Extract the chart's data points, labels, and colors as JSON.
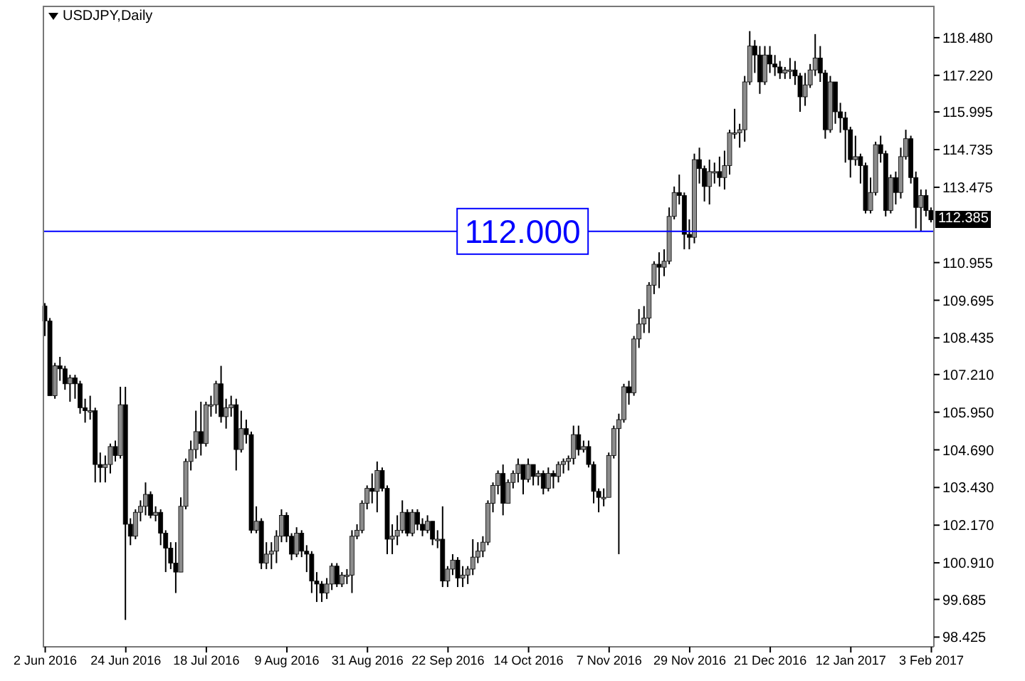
{
  "chart_data": {
    "type": "candlestick",
    "title": "USDJPY,Daily",
    "categories": [
      "2 Jun 2016",
      null,
      null,
      null,
      null,
      null,
      null,
      null,
      null,
      null,
      null,
      null,
      null,
      null,
      null,
      null,
      "24 Jun 2016",
      null,
      null,
      null,
      null,
      null,
      null,
      null,
      null,
      null,
      null,
      null,
      null,
      null,
      null,
      null,
      "18 Jul 2016",
      null,
      null,
      null,
      null,
      null,
      null,
      null,
      null,
      null,
      null,
      null,
      null,
      null,
      null,
      null,
      "9 Aug 2016",
      null,
      null,
      null,
      null,
      null,
      null,
      null,
      null,
      null,
      null,
      null,
      null,
      null,
      null,
      null,
      "31 Aug 2016",
      null,
      null,
      null,
      null,
      null,
      null,
      null,
      null,
      null,
      null,
      null,
      null,
      null,
      null,
      null,
      "22 Sep 2016",
      null,
      null,
      null,
      null,
      null,
      null,
      null,
      null,
      null,
      null,
      null,
      null,
      null,
      null,
      null,
      "14 Oct 2016",
      null,
      null,
      null,
      null,
      null,
      null,
      null,
      null,
      null,
      null,
      null,
      null,
      null,
      null,
      null,
      "7 Nov 2016",
      null,
      null,
      null,
      null,
      null,
      null,
      null,
      null,
      null,
      null,
      null,
      null,
      null,
      null,
      null,
      "29 Nov 2016",
      null,
      null,
      null,
      null,
      null,
      null,
      null,
      null,
      null,
      null,
      null,
      null,
      null,
      null,
      null,
      "21 Dec 2016",
      null,
      null,
      null,
      null,
      null,
      null,
      null,
      null,
      null,
      null,
      null,
      null,
      null,
      null,
      null,
      "12 Jan 2017",
      null,
      null,
      null,
      null,
      null,
      null,
      null,
      null,
      null,
      null,
      null,
      null,
      null,
      null,
      null,
      "3 Feb 2017"
    ],
    "ohlc": [
      [
        109.5,
        109.6,
        108.5,
        109.0
      ],
      [
        109.0,
        109.1,
        106.5,
        106.5
      ],
      [
        106.5,
        107.6,
        106.4,
        107.5
      ],
      [
        107.5,
        107.8,
        107.0,
        107.4
      ],
      [
        107.4,
        107.5,
        106.7,
        106.9
      ],
      [
        106.9,
        107.2,
        106.3,
        107.1
      ],
      [
        107.1,
        107.2,
        106.4,
        106.9
      ],
      [
        106.9,
        107.0,
        105.9,
        106.1
      ],
      [
        106.1,
        106.4,
        105.6,
        106.0
      ],
      [
        106.0,
        106.5,
        105.7,
        106.0
      ],
      [
        106.0,
        106.1,
        103.6,
        104.2
      ],
      [
        104.2,
        104.6,
        103.6,
        104.1
      ],
      [
        104.1,
        104.5,
        103.6,
        104.2
      ],
      [
        104.2,
        104.9,
        103.9,
        104.8
      ],
      [
        104.8,
        105.0,
        104.3,
        104.5
      ],
      [
        104.5,
        106.8,
        104.4,
        106.2
      ],
      [
        106.2,
        106.8,
        99.0,
        102.2
      ],
      [
        102.2,
        102.4,
        101.5,
        101.8
      ],
      [
        101.8,
        102.7,
        101.7,
        102.6
      ],
      [
        102.6,
        103.0,
        102.3,
        102.8
      ],
      [
        102.8,
        103.6,
        102.5,
        103.2
      ],
      [
        103.2,
        103.3,
        102.4,
        102.5
      ],
      [
        102.5,
        102.8,
        102.3,
        102.6
      ],
      [
        102.6,
        102.7,
        101.5,
        101.9
      ],
      [
        101.9,
        102.0,
        100.6,
        101.4
      ],
      [
        101.4,
        101.6,
        100.7,
        100.9
      ],
      [
        100.9,
        101.6,
        99.9,
        100.6
      ],
      [
        100.6,
        103.1,
        100.6,
        102.8
      ],
      [
        102.8,
        104.4,
        102.7,
        104.3
      ],
      [
        104.3,
        105.0,
        104.0,
        104.7
      ],
      [
        104.7,
        106.0,
        104.4,
        105.3
      ],
      [
        105.3,
        106.3,
        104.5,
        104.9
      ],
      [
        104.9,
        106.3,
        104.8,
        106.2
      ],
      [
        106.2,
        106.5,
        105.8,
        106.2
      ],
      [
        106.2,
        107.0,
        105.9,
        106.9
      ],
      [
        106.9,
        107.5,
        105.6,
        105.8
      ],
      [
        105.8,
        106.4,
        105.4,
        106.1
      ],
      [
        106.1,
        106.5,
        105.8,
        106.2
      ],
      [
        106.2,
        106.4,
        104.0,
        104.7
      ],
      [
        104.7,
        106.0,
        104.6,
        105.4
      ],
      [
        105.4,
        105.7,
        104.9,
        105.2
      ],
      [
        105.2,
        105.3,
        101.9,
        102.0
      ],
      [
        102.0,
        102.8,
        101.9,
        102.3
      ],
      [
        102.3,
        102.4,
        100.7,
        100.9
      ],
      [
        100.9,
        101.6,
        100.7,
        101.2
      ],
      [
        101.2,
        101.6,
        100.7,
        101.3
      ],
      [
        101.3,
        102.0,
        100.9,
        101.8
      ],
      [
        101.8,
        102.7,
        101.6,
        102.5
      ],
      [
        102.5,
        102.6,
        101.6,
        101.8
      ],
      [
        101.8,
        101.9,
        101.0,
        101.2
      ],
      [
        101.2,
        102.1,
        101.1,
        101.9
      ],
      [
        101.9,
        102.0,
        101.1,
        101.3
      ],
      [
        101.3,
        101.5,
        100.6,
        101.2
      ],
      [
        101.2,
        101.3,
        99.9,
        100.3
      ],
      [
        100.3,
        100.6,
        99.6,
        100.2
      ],
      [
        100.2,
        100.3,
        99.6,
        99.9
      ],
      [
        99.9,
        100.4,
        99.7,
        100.2
      ],
      [
        100.2,
        100.9,
        100.0,
        100.8
      ],
      [
        100.8,
        100.9,
        100.1,
        100.2
      ],
      [
        100.2,
        100.6,
        100.1,
        100.5
      ],
      [
        100.5,
        100.7,
        100.2,
        100.5
      ],
      [
        100.5,
        102.0,
        99.9,
        101.8
      ],
      [
        101.8,
        102.2,
        101.7,
        102.0
      ],
      [
        102.0,
        103.0,
        101.9,
        102.9
      ],
      [
        102.9,
        103.5,
        102.7,
        103.4
      ],
      [
        103.4,
        103.9,
        102.9,
        103.3
      ],
      [
        103.3,
        104.3,
        102.6,
        104.0
      ],
      [
        104.0,
        104.1,
        103.3,
        103.4
      ],
      [
        103.4,
        103.5,
        101.2,
        101.7
      ],
      [
        101.7,
        102.2,
        101.2,
        101.8
      ],
      [
        101.8,
        102.5,
        101.5,
        102.0
      ],
      [
        102.0,
        103.0,
        101.9,
        102.6
      ],
      [
        102.6,
        102.7,
        101.8,
        101.9
      ],
      [
        101.9,
        102.7,
        101.8,
        102.6
      ],
      [
        102.6,
        102.7,
        102.0,
        102.2
      ],
      [
        102.2,
        102.4,
        101.8,
        102.0
      ],
      [
        102.0,
        102.5,
        101.9,
        102.3
      ],
      [
        102.3,
        102.3,
        101.5,
        101.7
      ],
      [
        101.7,
        102.0,
        101.4,
        101.7
      ],
      [
        101.7,
        102.8,
        100.1,
        100.3
      ],
      [
        100.3,
        100.8,
        100.1,
        100.7
      ],
      [
        100.7,
        101.2,
        100.5,
        101.0
      ],
      [
        101.0,
        101.1,
        100.1,
        100.4
      ],
      [
        100.4,
        100.8,
        100.1,
        100.5
      ],
      [
        100.5,
        100.8,
        100.2,
        100.7
      ],
      [
        100.7,
        101.7,
        100.5,
        101.1
      ],
      [
        101.1,
        101.6,
        100.9,
        101.3
      ],
      [
        101.3,
        101.8,
        101.1,
        101.6
      ],
      [
        101.6,
        103.0,
        101.5,
        102.9
      ],
      [
        102.9,
        103.6,
        102.6,
        103.5
      ],
      [
        103.5,
        104.0,
        103.2,
        103.9
      ],
      [
        103.9,
        104.2,
        102.5,
        102.9
      ],
      [
        102.9,
        103.7,
        102.9,
        103.6
      ],
      [
        103.6,
        104.0,
        103.4,
        103.9
      ],
      [
        103.9,
        104.4,
        103.6,
        104.2
      ],
      [
        104.2,
        104.2,
        103.2,
        103.7
      ],
      [
        103.7,
        104.4,
        103.6,
        104.2
      ],
      [
        104.2,
        104.2,
        103.5,
        103.8
      ],
      [
        103.8,
        104.0,
        103.5,
        103.9
      ],
      [
        103.9,
        104.0,
        103.2,
        103.4
      ],
      [
        103.4,
        104.1,
        103.3,
        103.9
      ],
      [
        103.9,
        104.0,
        103.4,
        103.8
      ],
      [
        103.8,
        104.3,
        103.6,
        104.2
      ],
      [
        104.2,
        104.4,
        103.9,
        104.3
      ],
      [
        104.3,
        104.5,
        104.0,
        104.4
      ],
      [
        104.4,
        105.5,
        104.2,
        105.2
      ],
      [
        105.2,
        105.5,
        104.5,
        104.7
      ],
      [
        104.7,
        105.0,
        104.6,
        104.8
      ],
      [
        104.8,
        105.0,
        104.1,
        104.2
      ],
      [
        104.2,
        104.3,
        102.9,
        103.3
      ],
      [
        103.3,
        103.4,
        102.6,
        103.1
      ],
      [
        103.1,
        103.4,
        102.8,
        103.1
      ],
      [
        103.1,
        104.6,
        103.1,
        104.5
      ],
      [
        104.5,
        105.5,
        104.4,
        105.4
      ],
      [
        105.4,
        105.9,
        101.2,
        105.7
      ],
      [
        105.7,
        106.9,
        105.6,
        106.8
      ],
      [
        106.8,
        107.0,
        106.2,
        106.6
      ],
      [
        106.6,
        108.5,
        106.5,
        108.4
      ],
      [
        108.4,
        109.4,
        108.1,
        108.9
      ],
      [
        108.9,
        109.5,
        108.6,
        109.1
      ],
      [
        109.1,
        110.3,
        108.6,
        110.2
      ],
      [
        110.2,
        111.0,
        109.9,
        110.9
      ],
      [
        110.9,
        111.3,
        110.1,
        110.8
      ],
      [
        110.8,
        111.4,
        110.5,
        111.0
      ],
      [
        111.0,
        112.8,
        110.9,
        112.5
      ],
      [
        112.5,
        113.5,
        112.4,
        113.3
      ],
      [
        113.3,
        113.9,
        112.9,
        113.2
      ],
      [
        113.2,
        113.3,
        111.4,
        111.9
      ],
      [
        111.9,
        112.4,
        111.4,
        111.8
      ],
      [
        111.8,
        114.6,
        111.6,
        114.4
      ],
      [
        114.4,
        114.8,
        113.6,
        114.1
      ],
      [
        114.1,
        114.2,
        113.0,
        113.5
      ],
      [
        113.5,
        114.4,
        112.9,
        114.0
      ],
      [
        114.0,
        114.3,
        113.6,
        114.0
      ],
      [
        114.0,
        114.5,
        113.5,
        113.8
      ],
      [
        113.8,
        114.7,
        113.4,
        114.2
      ],
      [
        114.2,
        115.4,
        113.9,
        115.3
      ],
      [
        115.3,
        116.1,
        115.1,
        115.3
      ],
      [
        115.3,
        115.6,
        114.8,
        115.4
      ],
      [
        115.4,
        117.2,
        115.0,
        117.0
      ],
      [
        117.0,
        118.7,
        116.9,
        118.2
      ],
      [
        118.2,
        118.4,
        117.3,
        117.9
      ],
      [
        117.9,
        118.2,
        116.6,
        117.0
      ],
      [
        117.0,
        118.2,
        116.9,
        117.9
      ],
      [
        117.9,
        118.2,
        117.3,
        117.6
      ],
      [
        117.6,
        117.9,
        117.2,
        117.5
      ],
      [
        117.5,
        117.7,
        117.1,
        117.3
      ],
      [
        117.3,
        117.5,
        117.1,
        117.4
      ],
      [
        117.4,
        117.8,
        117.1,
        117.4
      ],
      [
        117.4,
        117.7,
        116.9,
        117.2
      ],
      [
        117.2,
        117.3,
        116.0,
        116.5
      ],
      [
        116.5,
        117.3,
        116.2,
        116.9
      ],
      [
        116.9,
        117.6,
        116.8,
        117.4
      ],
      [
        117.4,
        118.6,
        117.2,
        117.8
      ],
      [
        117.8,
        118.2,
        117.0,
        117.3
      ],
      [
        117.3,
        117.4,
        115.1,
        115.4
      ],
      [
        115.4,
        117.2,
        115.3,
        117.0
      ],
      [
        117.0,
        117.0,
        115.6,
        116.0
      ],
      [
        116.0,
        116.3,
        115.3,
        115.8
      ],
      [
        115.8,
        116.0,
        114.3,
        115.4
      ],
      [
        115.4,
        115.5,
        113.8,
        114.4
      ],
      [
        114.4,
        115.2,
        114.2,
        114.5
      ],
      [
        114.5,
        114.6,
        113.6,
        114.2
      ],
      [
        114.2,
        114.3,
        112.6,
        112.7
      ],
      [
        112.7,
        113.8,
        112.6,
        113.3
      ],
      [
        113.3,
        115.0,
        113.2,
        114.9
      ],
      [
        114.9,
        115.2,
        114.3,
        114.6
      ],
      [
        114.6,
        114.7,
        112.5,
        112.7
      ],
      [
        112.7,
        113.9,
        112.6,
        113.8
      ],
      [
        113.8,
        114.0,
        112.9,
        113.3
      ],
      [
        113.3,
        114.8,
        113.1,
        114.5
      ],
      [
        114.5,
        115.4,
        114.4,
        115.1
      ],
      [
        115.1,
        115.2,
        113.6,
        113.8
      ],
      [
        113.8,
        114.0,
        112.1,
        112.8
      ],
      [
        112.8,
        113.4,
        112.0,
        113.2
      ],
      [
        113.2,
        113.4,
        112.5,
        112.7
      ],
      [
        112.7,
        112.8,
        112.3,
        112.385
      ]
    ],
    "ylim": [
      98.1,
      119.55
    ],
    "yticks": [
      98.425,
      99.685,
      {
        "value": 100.91,
        "label": "100.910"
      },
      {
        "value": 102.17,
        "label": "102.170"
      },
      {
        "value": 103.43,
        "label": "103.430"
      },
      {
        "value": 104.69,
        "label": "104.690"
      },
      {
        "value": 105.95,
        "label": "105.950"
      },
      {
        "value": 107.21,
        "label": "107.210"
      },
      108.435,
      109.695,
      110.955,
      113.475,
      114.735,
      115.995,
      {
        "value": 117.22,
        "label": "117.220"
      },
      {
        "value": 118.48,
        "label": "118.480"
      }
    ],
    "ref_lines": [
      {
        "axis": "y",
        "value": 112,
        "label": "112.000",
        "color": "#0000ff"
      }
    ],
    "annotations": [
      {
        "text": "112.385",
        "y": 112.385
      }
    ]
  }
}
